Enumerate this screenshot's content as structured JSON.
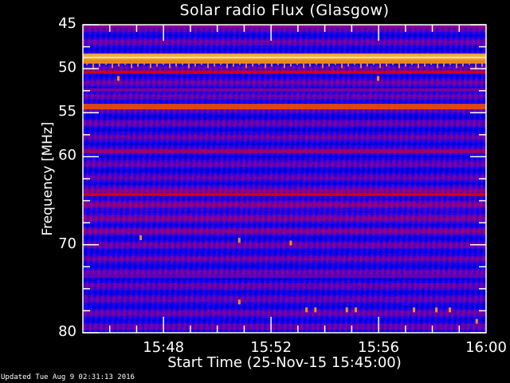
{
  "chart_data": {
    "type": "heatmap",
    "title": "Solar radio Flux (Glasgow)",
    "xlabel": "Start Time (25-Nov-15 15:45:00)",
    "ylabel": "Frequency [MHz]",
    "xlim": [
      "15:45",
      "16:00"
    ],
    "ylim": [
      45,
      80
    ],
    "y_inverted": true,
    "xticks": [
      "15:48",
      "15:52",
      "15:56",
      "16:00"
    ],
    "yticks": [
      45,
      50,
      55,
      60,
      70,
      80
    ],
    "colormap": [
      "#000060",
      "#0000ff",
      "#8000a0",
      "#e00000",
      "#ff8000",
      "#ffff60",
      "#ffffff"
    ],
    "bands": [
      {
        "freq_mhz": 45.2,
        "level": 0.35
      },
      {
        "freq_mhz": 48.6,
        "level": 0.75
      },
      {
        "freq_mhz": 48.8,
        "level": 1.0
      },
      {
        "freq_mhz": 49.1,
        "level": 0.7
      },
      {
        "freq_mhz": 50.4,
        "level": 0.5
      },
      {
        "freq_mhz": 52.4,
        "level": 0.35
      },
      {
        "freq_mhz": 54.3,
        "level": 0.6
      },
      {
        "freq_mhz": 59.4,
        "level": 0.4
      },
      {
        "freq_mhz": 64.3,
        "level": 0.5
      },
      {
        "freq_mhz": 73.6,
        "level": 0.3
      }
    ],
    "bursts": [
      {
        "time": "15:46:20",
        "freq_mhz": 51.1
      },
      {
        "time": "15:56:00",
        "freq_mhz": 51.1
      },
      {
        "time": "15:47:10",
        "freq_mhz": 69.2
      },
      {
        "time": "15:50:50",
        "freq_mhz": 69.5
      },
      {
        "time": "15:50:50",
        "freq_mhz": 76.5
      },
      {
        "time": "15:52:45",
        "freq_mhz": 69.8
      },
      {
        "time": "15:53:20",
        "freq_mhz": 77.4
      },
      {
        "time": "15:53:40",
        "freq_mhz": 77.4
      },
      {
        "time": "15:54:50",
        "freq_mhz": 77.4
      },
      {
        "time": "15:55:10",
        "freq_mhz": 77.4
      },
      {
        "time": "15:57:20",
        "freq_mhz": 77.4
      },
      {
        "time": "15:58:10",
        "freq_mhz": 77.4
      },
      {
        "time": "15:58:40",
        "freq_mhz": 77.4
      },
      {
        "time": "15:59:40",
        "freq_mhz": 78.7
      }
    ]
  },
  "footer": {
    "updated": "Updated Tue Aug  9 02:31:13 2016"
  }
}
